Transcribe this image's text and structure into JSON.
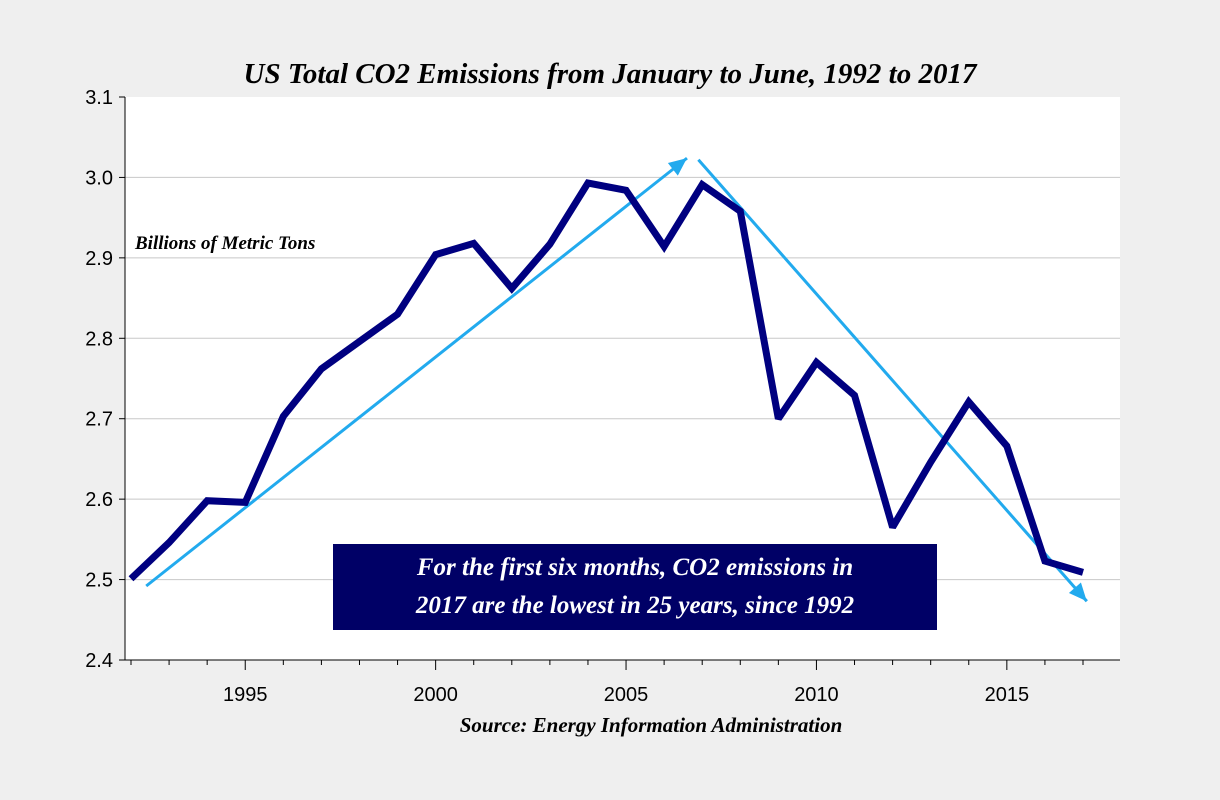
{
  "chart_data": {
    "type": "line",
    "title": "US Total CO2 Emissions from January to June, 1992 to 2017",
    "units_label": "Billions of Metric Tons",
    "source": "Source: Energy Information Administration",
    "annotation": [
      "For the first six months, CO2 emissions in",
      "2017 are the lowest in 25 years, since 1992"
    ],
    "x_tick_labels": [
      "1995",
      "2000",
      "2005",
      "2010",
      "2015"
    ],
    "y_tick_labels": [
      "2.4",
      "2.5",
      "2.6",
      "2.7",
      "2.8",
      "2.9",
      "3.0",
      "3.1"
    ],
    "xlim": [
      1992,
      2017
    ],
    "ylim": [
      2.4,
      3.1
    ],
    "grid": true,
    "series": [
      {
        "color": "#000080",
        "x": [
          1992,
          1993,
          1994,
          1995,
          1996,
          1997,
          1998,
          1999,
          2000,
          2001,
          2002,
          2003,
          2004,
          2005,
          2006,
          2007,
          2008,
          2009,
          2010,
          2011,
          2012,
          2013,
          2014,
          2015,
          2016,
          2017
        ],
        "values": [
          2.501,
          2.546,
          2.598,
          2.596,
          2.703,
          2.762,
          2.796,
          2.83,
          2.904,
          2.918,
          2.862,
          2.917,
          2.993,
          2.984,
          2.914,
          2.991,
          2.958,
          2.7,
          2.77,
          2.729,
          2.565,
          2.646,
          2.721,
          2.666,
          2.523,
          2.509
        ]
      }
    ],
    "trend_arrows": [
      {
        "color": "#22aaee",
        "from": [
          1992.4,
          2.492
        ],
        "to": [
          2006.6,
          3.024
        ]
      },
      {
        "color": "#22aaee",
        "from": [
          2006.9,
          3.022
        ],
        "to": [
          2017.1,
          2.473
        ]
      }
    ],
    "colors": {
      "background": "#efefef",
      "plot_background": "#ffffff",
      "grid": "#c8c8c8",
      "annotation_box": "#000066",
      "annotation_text": "#ffffff"
    }
  }
}
